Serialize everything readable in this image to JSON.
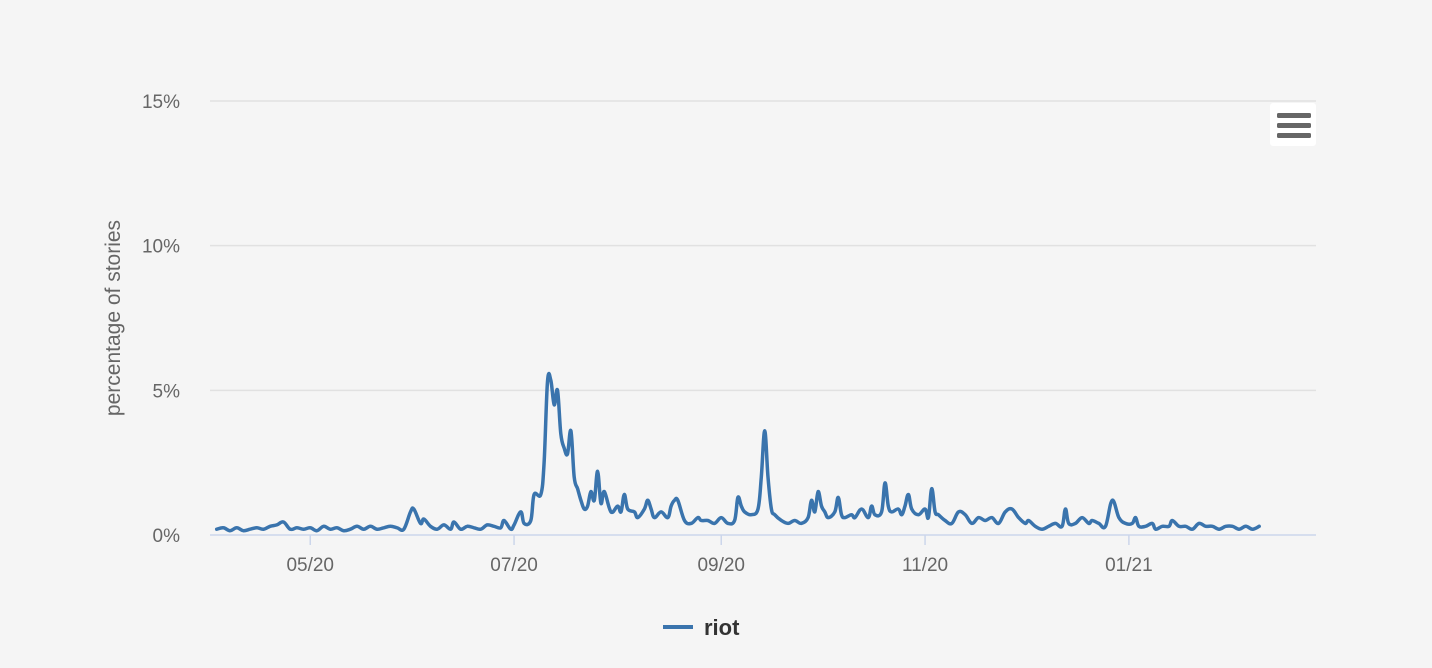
{
  "chart_data": {
    "type": "line",
    "title": "",
    "xlabel": "",
    "ylabel": "percentage of stories",
    "ylim": [
      0,
      15
    ],
    "y_ticks": [
      "0%",
      "5%",
      "10%",
      "15%"
    ],
    "y_tick_values": [
      0,
      5,
      10,
      15
    ],
    "x_ticks": [
      "05/20",
      "07/20",
      "09/20",
      "11/20",
      "01/21"
    ],
    "x_tick_dates": [
      "2020-05-01",
      "2020-07-01",
      "2020-09-01",
      "2020-11-01",
      "2021-01-01"
    ],
    "x_range": [
      "2020-04-01",
      "2021-02-26"
    ],
    "grid": true,
    "legend_position": "bottom-center",
    "series": [
      {
        "name": "riot",
        "color": "#3a74ad",
        "points": [
          [
            "2020-04-03",
            0.2
          ],
          [
            "2020-04-05",
            0.25
          ],
          [
            "2020-04-07",
            0.15
          ],
          [
            "2020-04-09",
            0.25
          ],
          [
            "2020-04-11",
            0.15
          ],
          [
            "2020-04-13",
            0.2
          ],
          [
            "2020-04-15",
            0.25
          ],
          [
            "2020-04-17",
            0.2
          ],
          [
            "2020-04-19",
            0.3
          ],
          [
            "2020-04-21",
            0.35
          ],
          [
            "2020-04-23",
            0.45
          ],
          [
            "2020-04-25",
            0.2
          ],
          [
            "2020-04-27",
            0.25
          ],
          [
            "2020-04-29",
            0.2
          ],
          [
            "2020-05-01",
            0.25
          ],
          [
            "2020-05-03",
            0.15
          ],
          [
            "2020-05-05",
            0.3
          ],
          [
            "2020-05-07",
            0.2
          ],
          [
            "2020-05-09",
            0.25
          ],
          [
            "2020-05-11",
            0.15
          ],
          [
            "2020-05-13",
            0.2
          ],
          [
            "2020-05-15",
            0.3
          ],
          [
            "2020-05-17",
            0.2
          ],
          [
            "2020-05-19",
            0.3
          ],
          [
            "2020-05-21",
            0.2
          ],
          [
            "2020-05-23",
            0.25
          ],
          [
            "2020-05-25",
            0.3
          ],
          [
            "2020-05-27",
            0.25
          ],
          [
            "2020-05-29",
            0.2
          ],
          [
            "2020-05-31",
            0.8
          ],
          [
            "2020-06-01",
            0.9
          ],
          [
            "2020-06-03",
            0.4
          ],
          [
            "2020-06-04",
            0.55
          ],
          [
            "2020-06-06",
            0.3
          ],
          [
            "2020-06-08",
            0.2
          ],
          [
            "2020-06-10",
            0.35
          ],
          [
            "2020-06-12",
            0.2
          ],
          [
            "2020-06-13",
            0.45
          ],
          [
            "2020-06-15",
            0.2
          ],
          [
            "2020-06-17",
            0.3
          ],
          [
            "2020-06-19",
            0.25
          ],
          [
            "2020-06-21",
            0.2
          ],
          [
            "2020-06-23",
            0.35
          ],
          [
            "2020-06-25",
            0.3
          ],
          [
            "2020-06-27",
            0.25
          ],
          [
            "2020-06-28",
            0.5
          ],
          [
            "2020-06-30",
            0.2
          ],
          [
            "2020-07-01",
            0.35
          ],
          [
            "2020-07-03",
            0.8
          ],
          [
            "2020-07-04",
            0.4
          ],
          [
            "2020-07-06",
            0.5
          ],
          [
            "2020-07-07",
            1.4
          ],
          [
            "2020-07-09",
            1.4
          ],
          [
            "2020-07-10",
            2.5
          ],
          [
            "2020-07-11",
            5.3
          ],
          [
            "2020-07-12",
            5.35
          ],
          [
            "2020-07-13",
            4.5
          ],
          [
            "2020-07-14",
            5.0
          ],
          [
            "2020-07-15",
            3.5
          ],
          [
            "2020-07-16",
            3.0
          ],
          [
            "2020-07-17",
            2.8
          ],
          [
            "2020-07-18",
            3.6
          ],
          [
            "2020-07-19",
            2.0
          ],
          [
            "2020-07-20",
            1.6
          ],
          [
            "2020-07-21",
            1.2
          ],
          [
            "2020-07-22",
            0.9
          ],
          [
            "2020-07-23",
            1.0
          ],
          [
            "2020-07-24",
            1.5
          ],
          [
            "2020-07-25",
            1.2
          ],
          [
            "2020-07-26",
            2.2
          ],
          [
            "2020-07-27",
            1.1
          ],
          [
            "2020-07-28",
            1.5
          ],
          [
            "2020-07-30",
            0.8
          ],
          [
            "2020-08-01",
            1.0
          ],
          [
            "2020-08-02",
            0.8
          ],
          [
            "2020-08-03",
            1.4
          ],
          [
            "2020-08-04",
            0.9
          ],
          [
            "2020-08-06",
            0.8
          ],
          [
            "2020-08-07",
            0.6
          ],
          [
            "2020-08-09",
            0.9
          ],
          [
            "2020-08-10",
            1.2
          ],
          [
            "2020-08-11",
            0.9
          ],
          [
            "2020-08-12",
            0.6
          ],
          [
            "2020-08-14",
            0.8
          ],
          [
            "2020-08-16",
            0.6
          ],
          [
            "2020-08-17",
            1.0
          ],
          [
            "2020-08-18",
            1.2
          ],
          [
            "2020-08-19",
            1.2
          ],
          [
            "2020-08-21",
            0.5
          ],
          [
            "2020-08-23",
            0.4
          ],
          [
            "2020-08-25",
            0.6
          ],
          [
            "2020-08-26",
            0.5
          ],
          [
            "2020-08-28",
            0.5
          ],
          [
            "2020-08-30",
            0.4
          ],
          [
            "2020-09-01",
            0.6
          ],
          [
            "2020-09-03",
            0.4
          ],
          [
            "2020-09-05",
            0.5
          ],
          [
            "2020-09-06",
            1.3
          ],
          [
            "2020-09-07",
            1.0
          ],
          [
            "2020-09-08",
            0.8
          ],
          [
            "2020-09-10",
            0.7
          ],
          [
            "2020-09-12",
            0.9
          ],
          [
            "2020-09-13",
            2.0
          ],
          [
            "2020-09-14",
            3.6
          ],
          [
            "2020-09-15",
            2.0
          ],
          [
            "2020-09-16",
            0.9
          ],
          [
            "2020-09-17",
            0.7
          ],
          [
            "2020-09-19",
            0.5
          ],
          [
            "2020-09-21",
            0.4
          ],
          [
            "2020-09-23",
            0.5
          ],
          [
            "2020-09-25",
            0.4
          ],
          [
            "2020-09-27",
            0.6
          ],
          [
            "2020-09-28",
            1.2
          ],
          [
            "2020-09-29",
            0.8
          ],
          [
            "2020-09-30",
            1.5
          ],
          [
            "2020-10-01",
            1.0
          ],
          [
            "2020-10-02",
            0.8
          ],
          [
            "2020-10-03",
            0.6
          ],
          [
            "2020-10-05",
            0.8
          ],
          [
            "2020-10-06",
            1.3
          ],
          [
            "2020-10-07",
            0.7
          ],
          [
            "2020-10-08",
            0.6
          ],
          [
            "2020-10-10",
            0.7
          ],
          [
            "2020-10-11",
            0.6
          ],
          [
            "2020-10-13",
            0.9
          ],
          [
            "2020-10-15",
            0.6
          ],
          [
            "2020-10-16",
            1.0
          ],
          [
            "2020-10-17",
            0.7
          ],
          [
            "2020-10-19",
            0.8
          ],
          [
            "2020-10-20",
            1.8
          ],
          [
            "2020-10-21",
            1.0
          ],
          [
            "2020-10-22",
            0.8
          ],
          [
            "2020-10-24",
            0.9
          ],
          [
            "2020-10-25",
            0.7
          ],
          [
            "2020-10-26",
            1.0
          ],
          [
            "2020-10-27",
            1.4
          ],
          [
            "2020-10-28",
            0.9
          ],
          [
            "2020-10-30",
            0.7
          ],
          [
            "2020-11-01",
            0.9
          ],
          [
            "2020-11-02",
            0.6
          ],
          [
            "2020-11-03",
            1.6
          ],
          [
            "2020-11-04",
            0.8
          ],
          [
            "2020-11-05",
            0.7
          ],
          [
            "2020-11-07",
            0.5
          ],
          [
            "2020-11-09",
            0.4
          ],
          [
            "2020-11-11",
            0.8
          ],
          [
            "2020-11-13",
            0.7
          ],
          [
            "2020-11-15",
            0.4
          ],
          [
            "2020-11-17",
            0.6
          ],
          [
            "2020-11-19",
            0.5
          ],
          [
            "2020-11-21",
            0.6
          ],
          [
            "2020-11-23",
            0.4
          ],
          [
            "2020-11-25",
            0.8
          ],
          [
            "2020-11-27",
            0.9
          ],
          [
            "2020-11-29",
            0.6
          ],
          [
            "2020-12-01",
            0.4
          ],
          [
            "2020-12-02",
            0.5
          ],
          [
            "2020-12-04",
            0.3
          ],
          [
            "2020-12-06",
            0.2
          ],
          [
            "2020-12-08",
            0.3
          ],
          [
            "2020-12-10",
            0.4
          ],
          [
            "2020-12-12",
            0.3
          ],
          [
            "2020-12-13",
            0.9
          ],
          [
            "2020-12-14",
            0.4
          ],
          [
            "2020-12-16",
            0.4
          ],
          [
            "2020-12-18",
            0.6
          ],
          [
            "2020-12-20",
            0.4
          ],
          [
            "2020-12-21",
            0.5
          ],
          [
            "2020-12-23",
            0.4
          ],
          [
            "2020-12-25",
            0.3
          ],
          [
            "2020-12-27",
            1.2
          ],
          [
            "2020-12-29",
            0.6
          ],
          [
            "2020-12-31",
            0.4
          ],
          [
            "2021-01-02",
            0.4
          ],
          [
            "2021-01-03",
            0.6
          ],
          [
            "2021-01-04",
            0.3
          ],
          [
            "2021-01-06",
            0.3
          ],
          [
            "2021-01-08",
            0.4
          ],
          [
            "2021-01-09",
            0.2
          ],
          [
            "2021-01-11",
            0.3
          ],
          [
            "2021-01-13",
            0.3
          ],
          [
            "2021-01-14",
            0.5
          ],
          [
            "2021-01-16",
            0.3
          ],
          [
            "2021-01-18",
            0.3
          ],
          [
            "2021-01-20",
            0.2
          ],
          [
            "2021-01-22",
            0.4
          ],
          [
            "2021-01-24",
            0.3
          ],
          [
            "2021-01-26",
            0.3
          ],
          [
            "2021-01-28",
            0.2
          ],
          [
            "2021-01-30",
            0.3
          ],
          [
            "2021-02-01",
            0.3
          ],
          [
            "2021-02-03",
            0.2
          ],
          [
            "2021-02-05",
            0.3
          ],
          [
            "2021-02-07",
            0.2
          ],
          [
            "2021-02-09",
            0.3
          ]
        ]
      }
    ]
  },
  "toolbar": {
    "menu_icon": "hamburger-menu-icon"
  }
}
